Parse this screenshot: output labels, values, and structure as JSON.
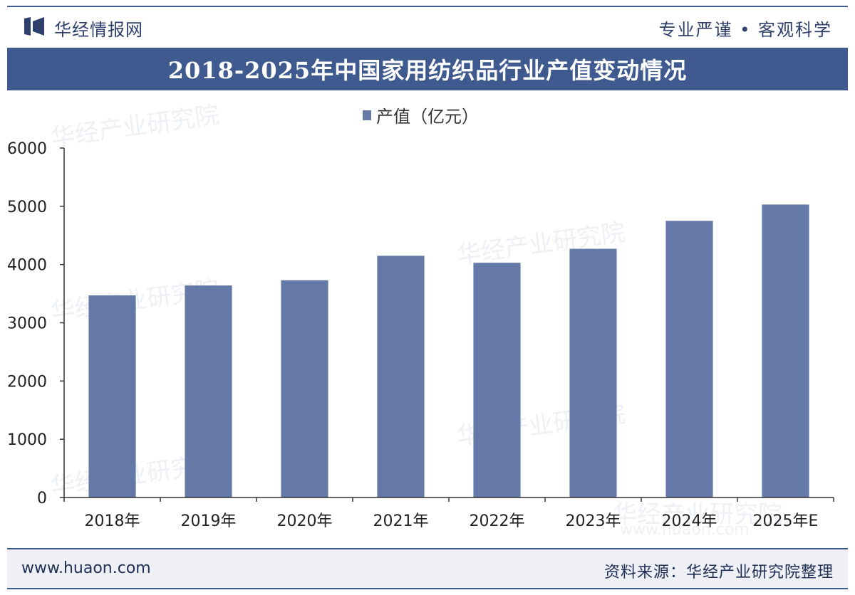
{
  "header": {
    "brand_name": "华经情报网",
    "slogan": "专业严谨 • 客观科学"
  },
  "title": "2018-2025年中国家用纺织品行业产值变动情况",
  "chart_data": {
    "type": "bar",
    "categories": [
      "2018年",
      "2019年",
      "2020年",
      "2021年",
      "2022年",
      "2023年",
      "2024年",
      "2025年E"
    ],
    "series": [
      {
        "name": "产值（亿元）",
        "values": [
          3470,
          3640,
          3730,
          4150,
          4030,
          4270,
          4750,
          5030
        ]
      }
    ],
    "ylim": [
      0,
      6000
    ],
    "yticks": [
      0,
      1000,
      2000,
      3000,
      4000,
      5000,
      6000
    ],
    "legend_position": "top-center",
    "grid": false,
    "colors": {
      "bar": "#6479a8",
      "axis": "#333333"
    }
  },
  "footer": {
    "url": "www.huaon.com",
    "source": "资料来源：华经产业研究院整理"
  },
  "watermarks": [
    "华经产业研究院",
    "www.huaon.com"
  ]
}
